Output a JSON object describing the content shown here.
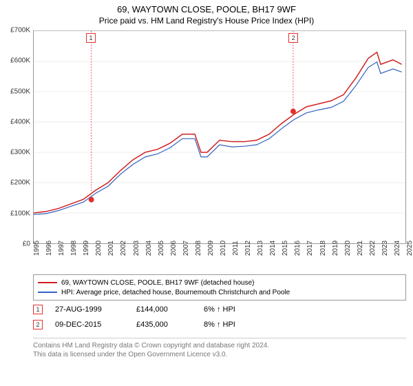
{
  "header": {
    "title": "69, WAYTOWN CLOSE, POOLE, BH17 9WF",
    "subtitle": "Price paid vs. HM Land Registry's House Price Index (HPI)"
  },
  "chart": {
    "type": "line",
    "background_color": "#ffffff",
    "grid_color": "#eeeeee",
    "border_color": "#999999",
    "ylim": [
      0,
      700000
    ],
    "ytick_step": 100000,
    "ytick_labels": [
      "£0",
      "£100K",
      "£200K",
      "£300K",
      "£400K",
      "£500K",
      "£600K",
      "£700K"
    ],
    "xlim": [
      1995,
      2025
    ],
    "xtick_step": 1,
    "xtick_labels": [
      "1995",
      "1996",
      "1997",
      "1998",
      "1999",
      "2000",
      "2001",
      "2002",
      "2003",
      "2004",
      "2005",
      "2006",
      "2007",
      "2008",
      "2009",
      "2010",
      "2011",
      "2012",
      "2013",
      "2014",
      "2015",
      "2016",
      "2017",
      "2018",
      "2019",
      "2020",
      "2021",
      "2022",
      "2023",
      "2024",
      "2025"
    ],
    "label_fontsize": 10,
    "series": [
      {
        "name": "price_paid",
        "label": "69, WAYTOWN CLOSE, POOLE, BH17 9WF (detached house)",
        "color": "#d02020",
        "width": 1.5,
        "x": [
          1995,
          1996,
          1997,
          1998,
          1999,
          2000,
          2001,
          2002,
          2003,
          2004,
          2005,
          2006,
          2007,
          2008,
          2008.5,
          2009,
          2010,
          2011,
          2012,
          2013,
          2014,
          2015,
          2016,
          2017,
          2018,
          2019,
          2020,
          2021,
          2022,
          2022.7,
          2023,
          2024,
          2024.7
        ],
        "y": [
          100000,
          105000,
          115000,
          130000,
          145000,
          175000,
          200000,
          240000,
          275000,
          300000,
          310000,
          330000,
          360000,
          360000,
          300000,
          300000,
          340000,
          335000,
          335000,
          340000,
          360000,
          395000,
          425000,
          450000,
          460000,
          470000,
          490000,
          545000,
          610000,
          630000,
          590000,
          605000,
          590000
        ]
      },
      {
        "name": "hpi",
        "label": "HPI: Average price, detached house, Bournemouth Christchurch and Poole",
        "color": "#3060c0",
        "width": 1.2,
        "x": [
          1995,
          1996,
          1997,
          1998,
          1999,
          2000,
          2001,
          2002,
          2003,
          2004,
          2005,
          2006,
          2007,
          2008,
          2008.5,
          2009,
          2010,
          2011,
          2012,
          2013,
          2014,
          2015,
          2016,
          2017,
          2018,
          2019,
          2020,
          2021,
          2022,
          2022.7,
          2023,
          2024,
          2024.7
        ],
        "y": [
          95000,
          98000,
          108000,
          122000,
          136000,
          165000,
          188000,
          228000,
          260000,
          285000,
          295000,
          315000,
          345000,
          345000,
          285000,
          285000,
          325000,
          318000,
          320000,
          325000,
          345000,
          378000,
          408000,
          430000,
          440000,
          448000,
          468000,
          520000,
          580000,
          598000,
          560000,
          575000,
          565000
        ]
      }
    ],
    "markers": [
      {
        "n": "1",
        "x": 1999.65,
        "y": 144000,
        "color": "#e03030"
      },
      {
        "n": "2",
        "x": 2015.94,
        "y": 435000,
        "color": "#e03030"
      }
    ]
  },
  "legend": {
    "items": [
      {
        "color": "#d02020",
        "label": "69, WAYTOWN CLOSE, POOLE, BH17 9WF (detached house)"
      },
      {
        "color": "#3060c0",
        "label": "HPI: Average price, detached house, Bournemouth Christchurch and Poole"
      }
    ]
  },
  "sales": [
    {
      "n": "1",
      "date": "27-AUG-1999",
      "price": "£144,000",
      "pct": "6% ↑ HPI"
    },
    {
      "n": "2",
      "date": "09-DEC-2015",
      "price": "£435,000",
      "pct": "8% ↑ HPI"
    }
  ],
  "footer": {
    "line1": "Contains HM Land Registry data © Crown copyright and database right 2024.",
    "line2": "This data is licensed under the Open Government Licence v3.0."
  }
}
